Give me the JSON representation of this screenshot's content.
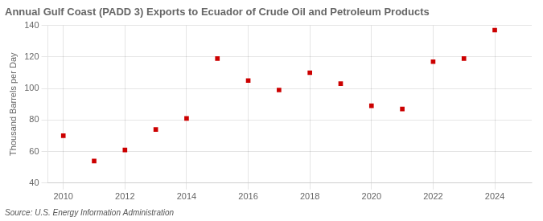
{
  "chart_data": {
    "type": "scatter",
    "title": "Annual Gulf Coast (PADD 3) Exports to Ecuador of Crude Oil and Petroleum Products",
    "ylabel": "Thousand Barrels per Day",
    "annotation": "Source: U.S. Energy Information Administration",
    "x": [
      2010,
      2011,
      2012,
      2013,
      2014,
      2015,
      2016,
      2017,
      2018,
      2019,
      2020,
      2021,
      2022,
      2023,
      2024
    ],
    "values": [
      70,
      54,
      61,
      74,
      81,
      119,
      105,
      99,
      110,
      103,
      89,
      87,
      117,
      119,
      137
    ],
    "color": "#cc0000",
    "marker": "square",
    "xlim": [
      2009.5,
      2025.2
    ],
    "ylim": [
      40,
      140
    ],
    "xticks": [
      2010,
      2012,
      2014,
      2016,
      2018,
      2020,
      2022,
      2024
    ],
    "yticks": [
      40,
      60,
      80,
      100,
      120,
      140
    ],
    "grid": true
  }
}
